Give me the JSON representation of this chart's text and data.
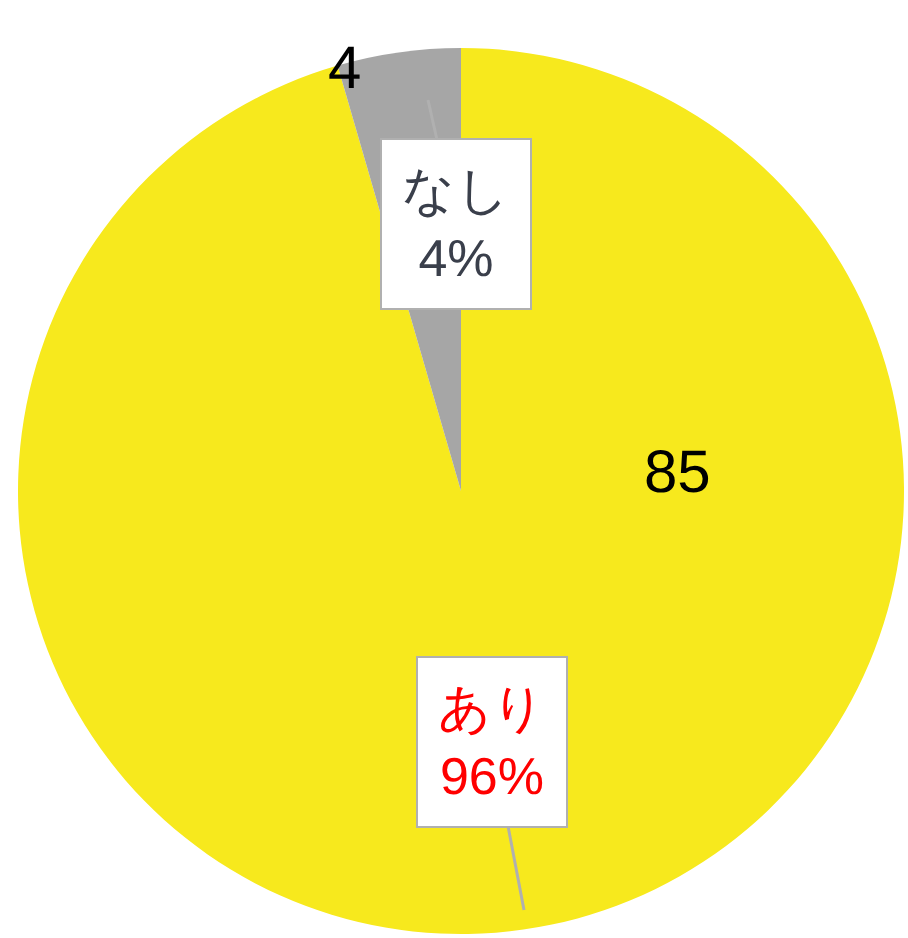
{
  "chart_data": {
    "type": "pie",
    "categories": [
      "あり",
      "なし"
    ],
    "values": [
      85,
      4
    ],
    "colors": [
      "#f7e91d",
      "#a6a6a6"
    ],
    "value_labels": [
      "85",
      "4"
    ],
    "annotations": [
      "96%",
      "4%"
    ],
    "legend": false
  }
}
